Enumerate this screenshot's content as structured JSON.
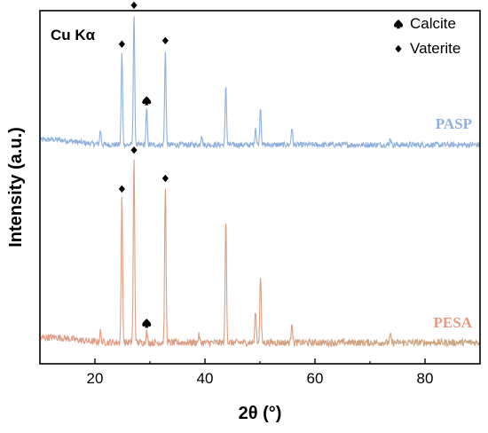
{
  "chart_data": {
    "type": "line",
    "title": "",
    "annotation": "Cu Kα",
    "xlabel": "2θ (°)",
    "ylabel": "Intensity (a.u.)",
    "xlim": [
      10,
      90
    ],
    "x_ticks": [
      20,
      40,
      60,
      80
    ],
    "y_ticks_shown": false,
    "grid": false,
    "legend": {
      "placement": "top-right",
      "entries": [
        {
          "label": "Calcite",
          "marker": "spade"
        },
        {
          "label": "Vaterite",
          "marker": "diamond"
        }
      ]
    },
    "series": [
      {
        "name": "PASP",
        "color": "#8fb0dc",
        "baseline": 0.62,
        "noise": 0.008,
        "peaks": [
          {
            "x": 21.0,
            "h": 0.04
          },
          {
            "x": 24.9,
            "h": 0.26
          },
          {
            "x": 27.1,
            "h": 0.37
          },
          {
            "x": 29.4,
            "h": 0.1
          },
          {
            "x": 32.8,
            "h": 0.27
          },
          {
            "x": 39.4,
            "h": 0.03
          },
          {
            "x": 43.8,
            "h": 0.17
          },
          {
            "x": 49.2,
            "h": 0.05
          },
          {
            "x": 50.1,
            "h": 0.11
          },
          {
            "x": 55.8,
            "h": 0.05
          },
          {
            "x": 73.7,
            "h": 0.02
          }
        ],
        "markers": [
          {
            "x": 24.9,
            "type": "diamond"
          },
          {
            "x": 27.1,
            "type": "diamond"
          },
          {
            "x": 29.4,
            "type": "spade"
          },
          {
            "x": 32.8,
            "type": "diamond"
          }
        ]
      },
      {
        "name": "PESA",
        "color": "#e49b84",
        "color_right": "#c9a680",
        "baseline": 0.06,
        "noise": 0.01,
        "peaks": [
          {
            "x": 21.0,
            "h": 0.03
          },
          {
            "x": 24.9,
            "h": 0.41
          },
          {
            "x": 27.1,
            "h": 0.52
          },
          {
            "x": 29.4,
            "h": 0.03
          },
          {
            "x": 32.8,
            "h": 0.44
          },
          {
            "x": 38.9,
            "h": 0.02
          },
          {
            "x": 43.8,
            "h": 0.35
          },
          {
            "x": 49.2,
            "h": 0.09
          },
          {
            "x": 50.1,
            "h": 0.19
          },
          {
            "x": 55.8,
            "h": 0.06
          },
          {
            "x": 73.7,
            "h": 0.02
          }
        ],
        "markers": [
          {
            "x": 24.9,
            "type": "diamond"
          },
          {
            "x": 27.1,
            "type": "diamond"
          },
          {
            "x": 29.4,
            "type": "spade"
          },
          {
            "x": 32.8,
            "type": "diamond"
          }
        ]
      }
    ]
  }
}
